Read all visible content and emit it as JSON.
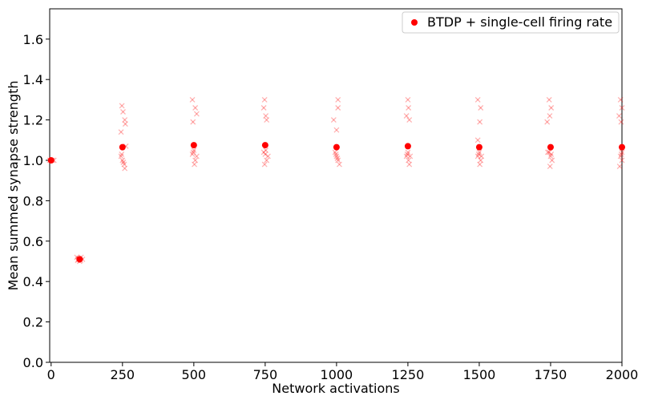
{
  "chart_data": {
    "type": "scatter",
    "xlabel": "Network activations",
    "ylabel": "Mean summed synapse strength",
    "xlim": [
      -5,
      2000
    ],
    "ylim": [
      0.0,
      1.75
    ],
    "xticks": [
      0,
      250,
      500,
      750,
      1000,
      1250,
      1500,
      1750,
      2000
    ],
    "xtick_labels": [
      "0",
      "250",
      "500",
      "750",
      "1000",
      "1250",
      "1500",
      "1750",
      "2000"
    ],
    "yticks": [
      0.0,
      0.2,
      0.4,
      0.6,
      0.8,
      1.0,
      1.2,
      1.4,
      1.6
    ],
    "ytick_labels": [
      "0.0",
      "0.2",
      "0.4",
      "0.6",
      "0.8",
      "1.0",
      "1.2",
      "1.4",
      "1.6"
    ],
    "grid": false,
    "legend_position": "top-right",
    "colors": {
      "main": "#ff0000",
      "trials": "#ff0000"
    },
    "series": [
      {
        "name": "BTDP + single-cell firing rate",
        "marker": "circle",
        "in_legend": true,
        "points": [
          [
            0,
            1.0
          ],
          [
            100,
            0.51
          ],
          [
            250,
            1.065
          ],
          [
            500,
            1.075
          ],
          [
            750,
            1.075
          ],
          [
            1000,
            1.065
          ],
          [
            1250,
            1.07
          ],
          [
            1500,
            1.065
          ],
          [
            1750,
            1.065
          ],
          [
            2000,
            1.065
          ]
        ]
      },
      {
        "marker": "x",
        "in_legend": false,
        "points": [
          [
            -5,
            1.0
          ],
          [
            0,
            1.0
          ],
          [
            5,
            1.0
          ],
          [
            10,
            1.0
          ],
          [
            90,
            0.52
          ],
          [
            95,
            0.51
          ],
          [
            100,
            0.5
          ],
          [
            105,
            0.52
          ],
          [
            110,
            0.51
          ],
          [
            98,
            0.515
          ],
          [
            103,
            0.505
          ],
          [
            93,
            0.505
          ],
          [
            245,
            1.14
          ],
          [
            248,
            1.27
          ],
          [
            252,
            1.24
          ],
          [
            258,
            1.2
          ],
          [
            260,
            1.18
          ],
          [
            245,
            1.02
          ],
          [
            250,
            1.0
          ],
          [
            253,
            0.99
          ],
          [
            256,
            0.98
          ],
          [
            258,
            0.96
          ],
          [
            247,
            1.03
          ],
          [
            262,
            1.07
          ],
          [
            495,
            1.3
          ],
          [
            505,
            1.26
          ],
          [
            497,
            1.19
          ],
          [
            510,
            1.23
          ],
          [
            495,
            1.03
          ],
          [
            500,
            1.05
          ],
          [
            505,
            1.0
          ],
          [
            502,
            0.98
          ],
          [
            510,
            1.02
          ],
          [
            498,
            1.04
          ],
          [
            748,
            1.3
          ],
          [
            745,
            1.26
          ],
          [
            752,
            1.22
          ],
          [
            755,
            1.2
          ],
          [
            745,
            1.04
          ],
          [
            750,
            1.03
          ],
          [
            755,
            1.0
          ],
          [
            748,
            0.98
          ],
          [
            760,
            1.02
          ],
          [
            752,
            1.05
          ],
          [
            990,
            1.2
          ],
          [
            1005,
            1.3
          ],
          [
            1000,
            1.15
          ],
          [
            1005,
            1.26
          ],
          [
            995,
            1.04
          ],
          [
            1000,
            1.02
          ],
          [
            1005,
            1.0
          ],
          [
            1010,
            0.98
          ],
          [
            998,
            1.03
          ],
          [
            1003,
            1.01
          ],
          [
            1245,
            1.22
          ],
          [
            1250,
            1.3
          ],
          [
            1252,
            1.26
          ],
          [
            1255,
            1.2
          ],
          [
            1245,
            1.02
          ],
          [
            1250,
            1.04
          ],
          [
            1252,
            1.0
          ],
          [
            1255,
            0.98
          ],
          [
            1248,
            1.03
          ],
          [
            1258,
            1.02
          ],
          [
            1495,
            1.3
          ],
          [
            1505,
            1.26
          ],
          [
            1502,
            1.19
          ],
          [
            1495,
            1.1
          ],
          [
            1495,
            1.02
          ],
          [
            1500,
            1.04
          ],
          [
            1505,
            1.0
          ],
          [
            1502,
            0.98
          ],
          [
            1498,
            1.03
          ],
          [
            1508,
            1.02
          ],
          [
            1738,
            1.19
          ],
          [
            1745,
            1.3
          ],
          [
            1752,
            1.26
          ],
          [
            1747,
            1.22
          ],
          [
            1745,
            1.04
          ],
          [
            1750,
            1.02
          ],
          [
            1755,
            1.0
          ],
          [
            1748,
            0.97
          ],
          [
            1752,
            1.03
          ],
          [
            1740,
            1.04
          ],
          [
            1995,
            1.3
          ],
          [
            2000,
            1.26
          ],
          [
            1990,
            1.22
          ],
          [
            1997,
            1.19
          ],
          [
            1995,
            1.02
          ],
          [
            2000,
            1.0
          ],
          [
            1992,
            0.97
          ],
          [
            2000,
            1.04
          ],
          [
            1998,
            1.03
          ]
        ]
      }
    ]
  }
}
